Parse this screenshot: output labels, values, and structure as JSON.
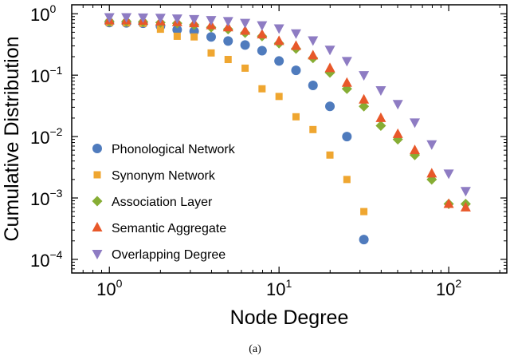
{
  "caption": "(a)",
  "chart_data": {
    "type": "scatter",
    "xscale": "log",
    "yscale": "log",
    "xlabel": "Node Degree",
    "ylabel": "Cumulative Distribution",
    "xlim": [
      0.6,
      220
    ],
    "ylim": [
      6e-05,
      1.4
    ],
    "x_ticks": [
      {
        "value": 1,
        "base": "10",
        "exp": "0"
      },
      {
        "value": 10,
        "base": "10",
        "exp": "1"
      },
      {
        "value": 100,
        "base": "10",
        "exp": "2"
      }
    ],
    "y_ticks": [
      {
        "value": 1,
        "base": "10",
        "exp": "0"
      },
      {
        "value": 0.1,
        "base": "10",
        "exp": "−1"
      },
      {
        "value": 0.01,
        "base": "10",
        "exp": "−2"
      },
      {
        "value": 0.001,
        "base": "10",
        "exp": "−3"
      },
      {
        "value": 0.0001,
        "base": "10",
        "exp": "−4"
      }
    ],
    "legend_position": "lower-left",
    "grid": false,
    "series": [
      {
        "name": "Phonological Network",
        "marker": "circle",
        "color": "#4f7bbd",
        "points": [
          [
            1.0,
            0.72
          ],
          [
            1.26,
            0.71
          ],
          [
            1.58,
            0.7
          ],
          [
            2.0,
            0.63
          ],
          [
            2.51,
            0.55
          ],
          [
            3.16,
            0.52
          ],
          [
            3.98,
            0.42
          ],
          [
            5.01,
            0.36
          ],
          [
            6.31,
            0.31
          ],
          [
            7.94,
            0.25
          ],
          [
            10.0,
            0.17
          ],
          [
            12.59,
            0.12
          ],
          [
            15.85,
            0.068
          ],
          [
            19.95,
            0.031
          ],
          [
            25.12,
            0.01
          ],
          [
            31.62,
            0.00021
          ]
        ]
      },
      {
        "name": "Synonym Network",
        "marker": "square",
        "color": "#efa630",
        "points": [
          [
            1.0,
            0.72
          ],
          [
            1.26,
            0.71
          ],
          [
            1.58,
            0.7
          ],
          [
            2.0,
            0.56
          ],
          [
            2.51,
            0.43
          ],
          [
            3.16,
            0.42
          ],
          [
            3.98,
            0.23
          ],
          [
            5.01,
            0.18
          ],
          [
            6.31,
            0.13
          ],
          [
            7.94,
            0.06
          ],
          [
            10.0,
            0.045
          ],
          [
            12.59,
            0.021
          ],
          [
            15.85,
            0.013
          ],
          [
            19.95,
            0.005
          ],
          [
            25.12,
            0.002
          ],
          [
            31.62,
            0.0006
          ]
        ]
      },
      {
        "name": "Association Layer",
        "marker": "diamond",
        "color": "#86ad34",
        "points": [
          [
            1.0,
            0.75
          ],
          [
            1.26,
            0.75
          ],
          [
            1.58,
            0.74
          ],
          [
            2.0,
            0.72
          ],
          [
            2.51,
            0.7
          ],
          [
            3.16,
            0.66
          ],
          [
            3.98,
            0.6
          ],
          [
            5.01,
            0.56
          ],
          [
            6.31,
            0.49
          ],
          [
            7.94,
            0.43
          ],
          [
            10.0,
            0.33
          ],
          [
            12.59,
            0.27
          ],
          [
            15.85,
            0.19
          ],
          [
            19.95,
            0.11
          ],
          [
            25.12,
            0.06
          ],
          [
            31.62,
            0.031
          ],
          [
            39.81,
            0.015
          ],
          [
            50.12,
            0.009
          ],
          [
            63.1,
            0.005
          ],
          [
            79.43,
            0.002
          ],
          [
            100.0,
            0.0008
          ],
          [
            125.89,
            0.0008
          ]
        ]
      },
      {
        "name": "Semantic Aggregate",
        "marker": "triangle-up",
        "color": "#e8582a",
        "points": [
          [
            1.0,
            0.78
          ],
          [
            1.26,
            0.78
          ],
          [
            1.58,
            0.77
          ],
          [
            2.0,
            0.75
          ],
          [
            2.51,
            0.73
          ],
          [
            3.16,
            0.7
          ],
          [
            3.98,
            0.65
          ],
          [
            5.01,
            0.6
          ],
          [
            6.31,
            0.53
          ],
          [
            7.94,
            0.46
          ],
          [
            10.0,
            0.36
          ],
          [
            12.59,
            0.3
          ],
          [
            15.85,
            0.21
          ],
          [
            19.95,
            0.13
          ],
          [
            25.12,
            0.075
          ],
          [
            31.62,
            0.04
          ],
          [
            39.81,
            0.02
          ],
          [
            50.12,
            0.011
          ],
          [
            63.1,
            0.006
          ],
          [
            79.43,
            0.0025
          ],
          [
            100.0,
            0.0008
          ],
          [
            125.89,
            0.0007
          ]
        ]
      },
      {
        "name": "Overlapping Degree",
        "marker": "triangle-down",
        "color": "#8e7cc3",
        "points": [
          [
            1.0,
            0.88
          ],
          [
            1.26,
            0.88
          ],
          [
            1.58,
            0.87
          ],
          [
            2.0,
            0.86
          ],
          [
            2.51,
            0.84
          ],
          [
            3.16,
            0.82
          ],
          [
            3.98,
            0.79
          ],
          [
            5.01,
            0.76
          ],
          [
            6.31,
            0.71
          ],
          [
            7.94,
            0.65
          ],
          [
            10.0,
            0.58
          ],
          [
            12.59,
            0.48
          ],
          [
            15.85,
            0.37
          ],
          [
            19.95,
            0.26
          ],
          [
            25.12,
            0.17
          ],
          [
            31.62,
            0.1
          ],
          [
            39.81,
            0.057
          ],
          [
            50.12,
            0.034
          ],
          [
            63.1,
            0.017
          ],
          [
            79.43,
            0.0075
          ],
          [
            100.0,
            0.0025
          ],
          [
            125.89,
            0.0013
          ]
        ]
      }
    ]
  }
}
